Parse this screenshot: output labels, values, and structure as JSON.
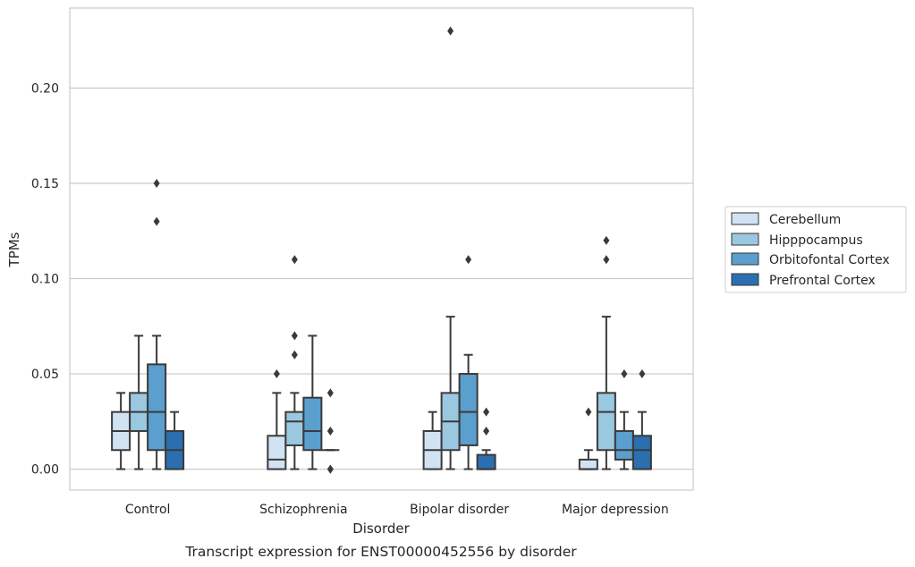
{
  "chart_data": {
    "type": "box",
    "xlabel": "Disorder",
    "ylabel": "TPMs",
    "caption": "Transcript expression for ENST00000452556 by disorder",
    "ylim": [
      -0.011,
      0.242
    ],
    "yticks": [
      "0.00",
      "0.05",
      "0.10",
      "0.15",
      "0.20"
    ],
    "ytick_values": [
      0.0,
      0.05,
      0.1,
      0.15,
      0.2
    ],
    "grid": "horizontal",
    "legend_position": "right",
    "categories": [
      "Control",
      "Schizophrenia",
      "Bipolar disorder",
      "Major depression"
    ],
    "series": [
      {
        "name": "Cerebellum",
        "color": "#d1e2f3",
        "boxes": [
          {
            "whislo": 0.0,
            "q1": 0.01,
            "med": 0.02,
            "q3": 0.03,
            "whishi": 0.04,
            "fliers": []
          },
          {
            "whislo": 0.0,
            "q1": 0.0,
            "med": 0.005,
            "q3": 0.0175,
            "whishi": 0.04,
            "fliers": [
              0.05
            ]
          },
          {
            "whislo": 0.0,
            "q1": 0.0,
            "med": 0.01,
            "q3": 0.02,
            "whishi": 0.03,
            "fliers": []
          },
          {
            "whislo": 0.0,
            "q1": 0.0,
            "med": 0.0,
            "q3": 0.005,
            "whishi": 0.01,
            "fliers": [
              0.03
            ]
          }
        ]
      },
      {
        "name": "Hipppocampus",
        "color": "#9ac8e0",
        "boxes": [
          {
            "whislo": 0.0,
            "q1": 0.02,
            "med": 0.03,
            "q3": 0.04,
            "whishi": 0.07,
            "fliers": []
          },
          {
            "whislo": 0.0,
            "q1": 0.0125,
            "med": 0.025,
            "q3": 0.03,
            "whishi": 0.04,
            "fliers": [
              0.06,
              0.07,
              0.11
            ]
          },
          {
            "whislo": 0.0,
            "q1": 0.01,
            "med": 0.025,
            "q3": 0.04,
            "whishi": 0.08,
            "fliers": [
              0.23
            ]
          },
          {
            "whislo": 0.0,
            "q1": 0.01,
            "med": 0.03,
            "q3": 0.04,
            "whishi": 0.08,
            "fliers": [
              0.11,
              0.12
            ]
          }
        ]
      },
      {
        "name": "Orbitofontal Cortex",
        "color": "#5a9fcd",
        "boxes": [
          {
            "whislo": 0.0,
            "q1": 0.01,
            "med": 0.03,
            "q3": 0.055,
            "whishi": 0.07,
            "fliers": [
              0.13,
              0.15
            ]
          },
          {
            "whislo": 0.0,
            "q1": 0.01,
            "med": 0.02,
            "q3": 0.0375,
            "whishi": 0.07,
            "fliers": []
          },
          {
            "whislo": 0.0,
            "q1": 0.0125,
            "med": 0.03,
            "q3": 0.05,
            "whishi": 0.06,
            "fliers": [
              0.11
            ]
          },
          {
            "whislo": 0.0,
            "q1": 0.005,
            "med": 0.01,
            "q3": 0.02,
            "whishi": 0.03,
            "fliers": [
              0.05
            ]
          }
        ]
      },
      {
        "name": "Prefrontal Cortex",
        "color": "#2c6fb0",
        "boxes": [
          {
            "whislo": 0.0,
            "q1": 0.0,
            "med": 0.01,
            "q3": 0.02,
            "whishi": 0.03,
            "fliers": []
          },
          {
            "whislo": 0.01,
            "q1": 0.01,
            "med": 0.01,
            "q3": 0.01,
            "whishi": 0.01,
            "fliers": [
              0.0,
              0.0,
              0.02,
              0.04
            ]
          },
          {
            "whislo": 0.0,
            "q1": 0.0,
            "med": 0.0,
            "q3": 0.0075,
            "whishi": 0.01,
            "fliers": [
              0.02,
              0.03
            ]
          },
          {
            "whislo": 0.0,
            "q1": 0.0,
            "med": 0.01,
            "q3": 0.0175,
            "whishi": 0.03,
            "fliers": [
              0.05
            ]
          }
        ]
      }
    ]
  }
}
